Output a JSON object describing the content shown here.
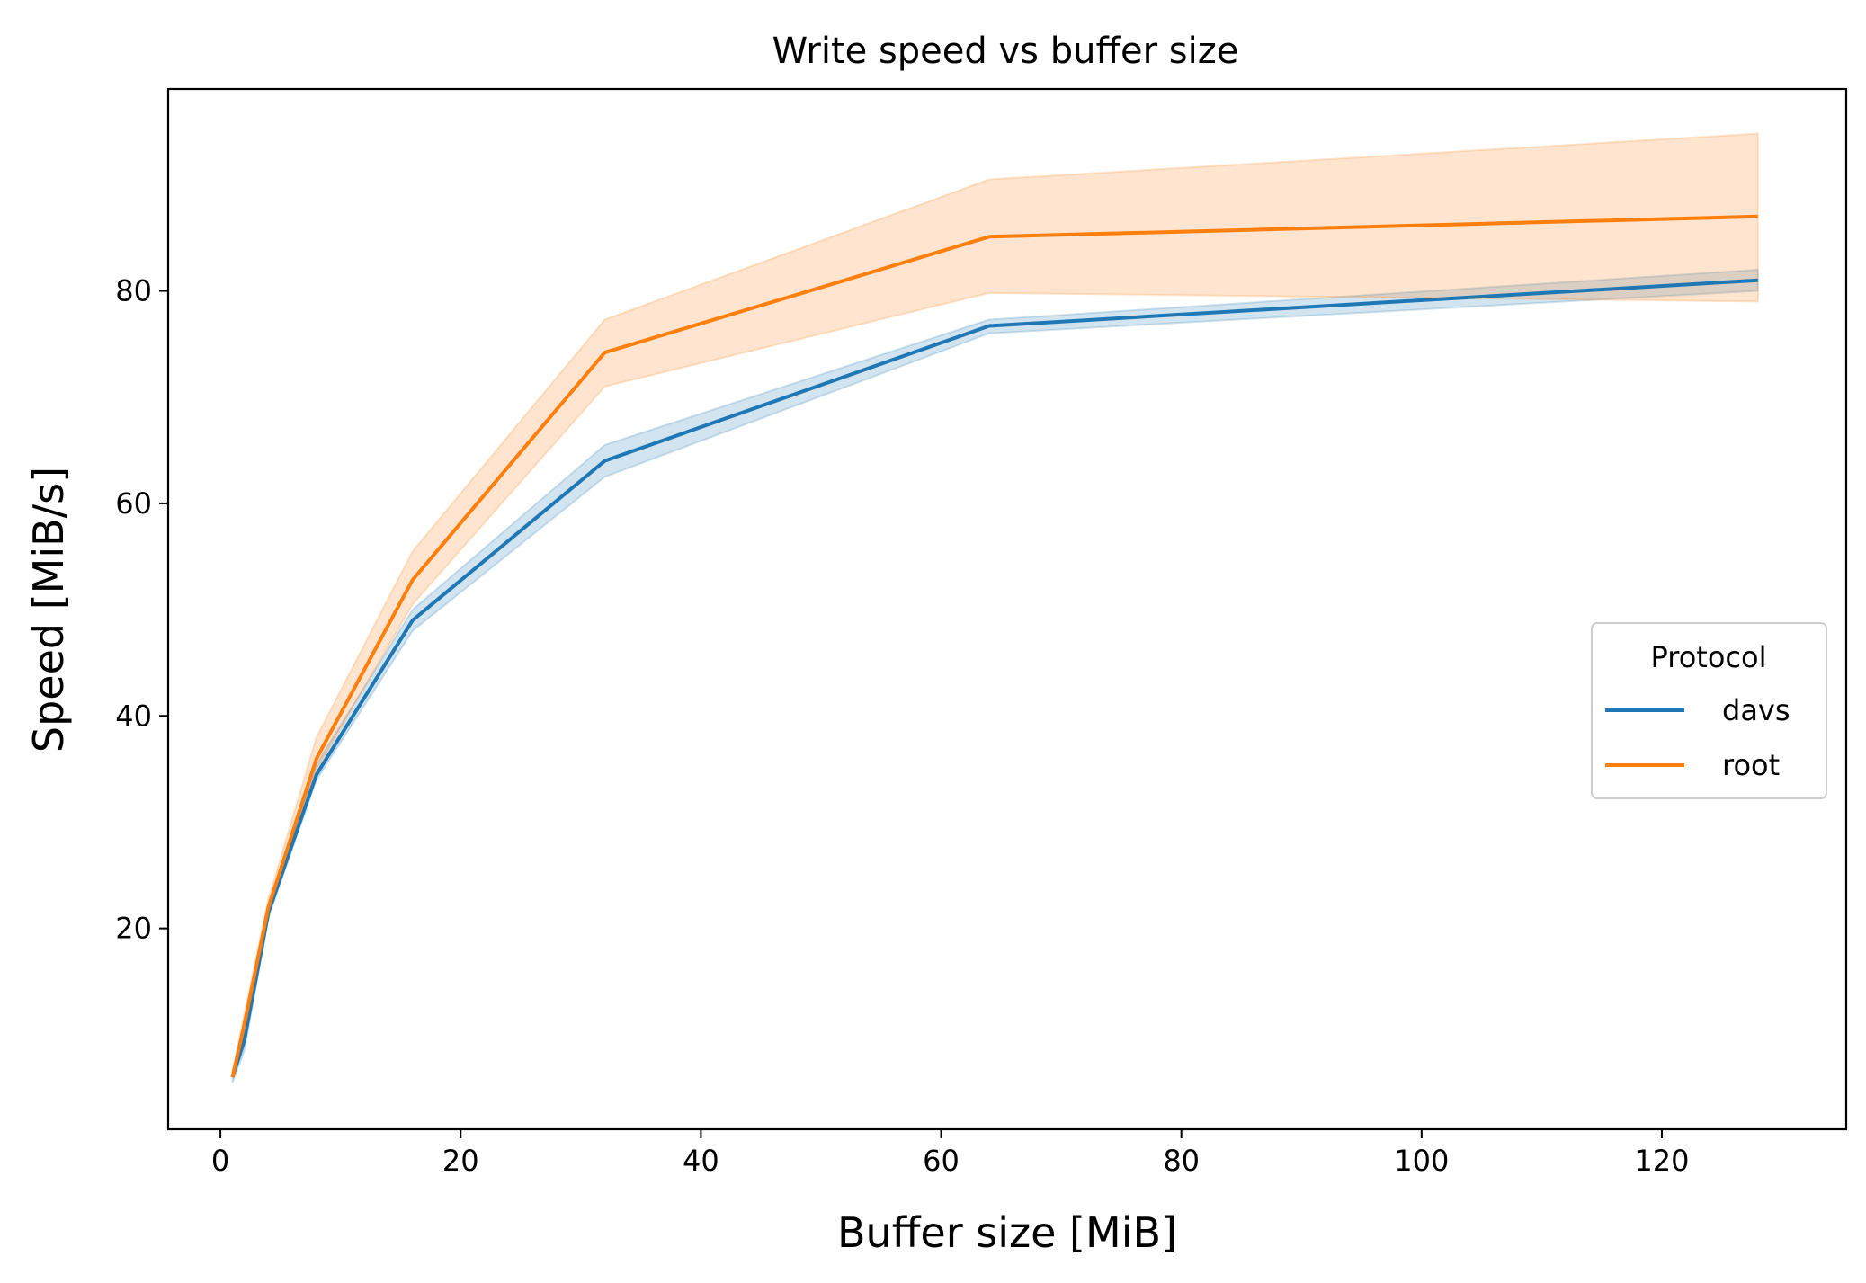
{
  "chart_data": {
    "type": "line",
    "title": "Write speed vs buffer size",
    "xlabel": "Buffer size [MiB]",
    "ylabel": "Speed [MiB/s]",
    "xlim": [
      -4.35,
      135.35
    ],
    "ylim": [
      1.1,
      99.0
    ],
    "xticks": [
      0,
      20,
      40,
      60,
      80,
      100,
      120
    ],
    "yticks": [
      20,
      40,
      60,
      80
    ],
    "grid": false,
    "legend": {
      "title": "Protocol",
      "position": "center-right"
    },
    "series": [
      {
        "name": "davs",
        "color": "#1f77b4",
        "x": [
          1,
          2,
          4,
          8,
          16,
          32,
          64,
          128
        ],
        "y": [
          6.0,
          9.5,
          21.5,
          34.5,
          49.0,
          64.0,
          76.7,
          81.0
        ],
        "ci_low": [
          5.5,
          8.5,
          21.0,
          34.0,
          48.0,
          62.5,
          76.0,
          80.0
        ],
        "ci_high": [
          6.5,
          10.5,
          22.0,
          35.5,
          50.0,
          65.5,
          77.3,
          82.0
        ]
      },
      {
        "name": "root",
        "color": "#ff7f0e",
        "x": [
          1,
          2,
          4,
          8,
          16,
          32,
          64,
          128
        ],
        "y": [
          6.0,
          11.0,
          22.0,
          36.0,
          52.8,
          74.2,
          85.1,
          87.0
        ],
        "ci_low": [
          6.0,
          10.5,
          21.5,
          35.0,
          50.5,
          71.0,
          79.8,
          79.0
        ],
        "ci_high": [
          6.5,
          12.0,
          22.8,
          38.0,
          55.5,
          77.3,
          90.5,
          94.8
        ]
      }
    ]
  }
}
